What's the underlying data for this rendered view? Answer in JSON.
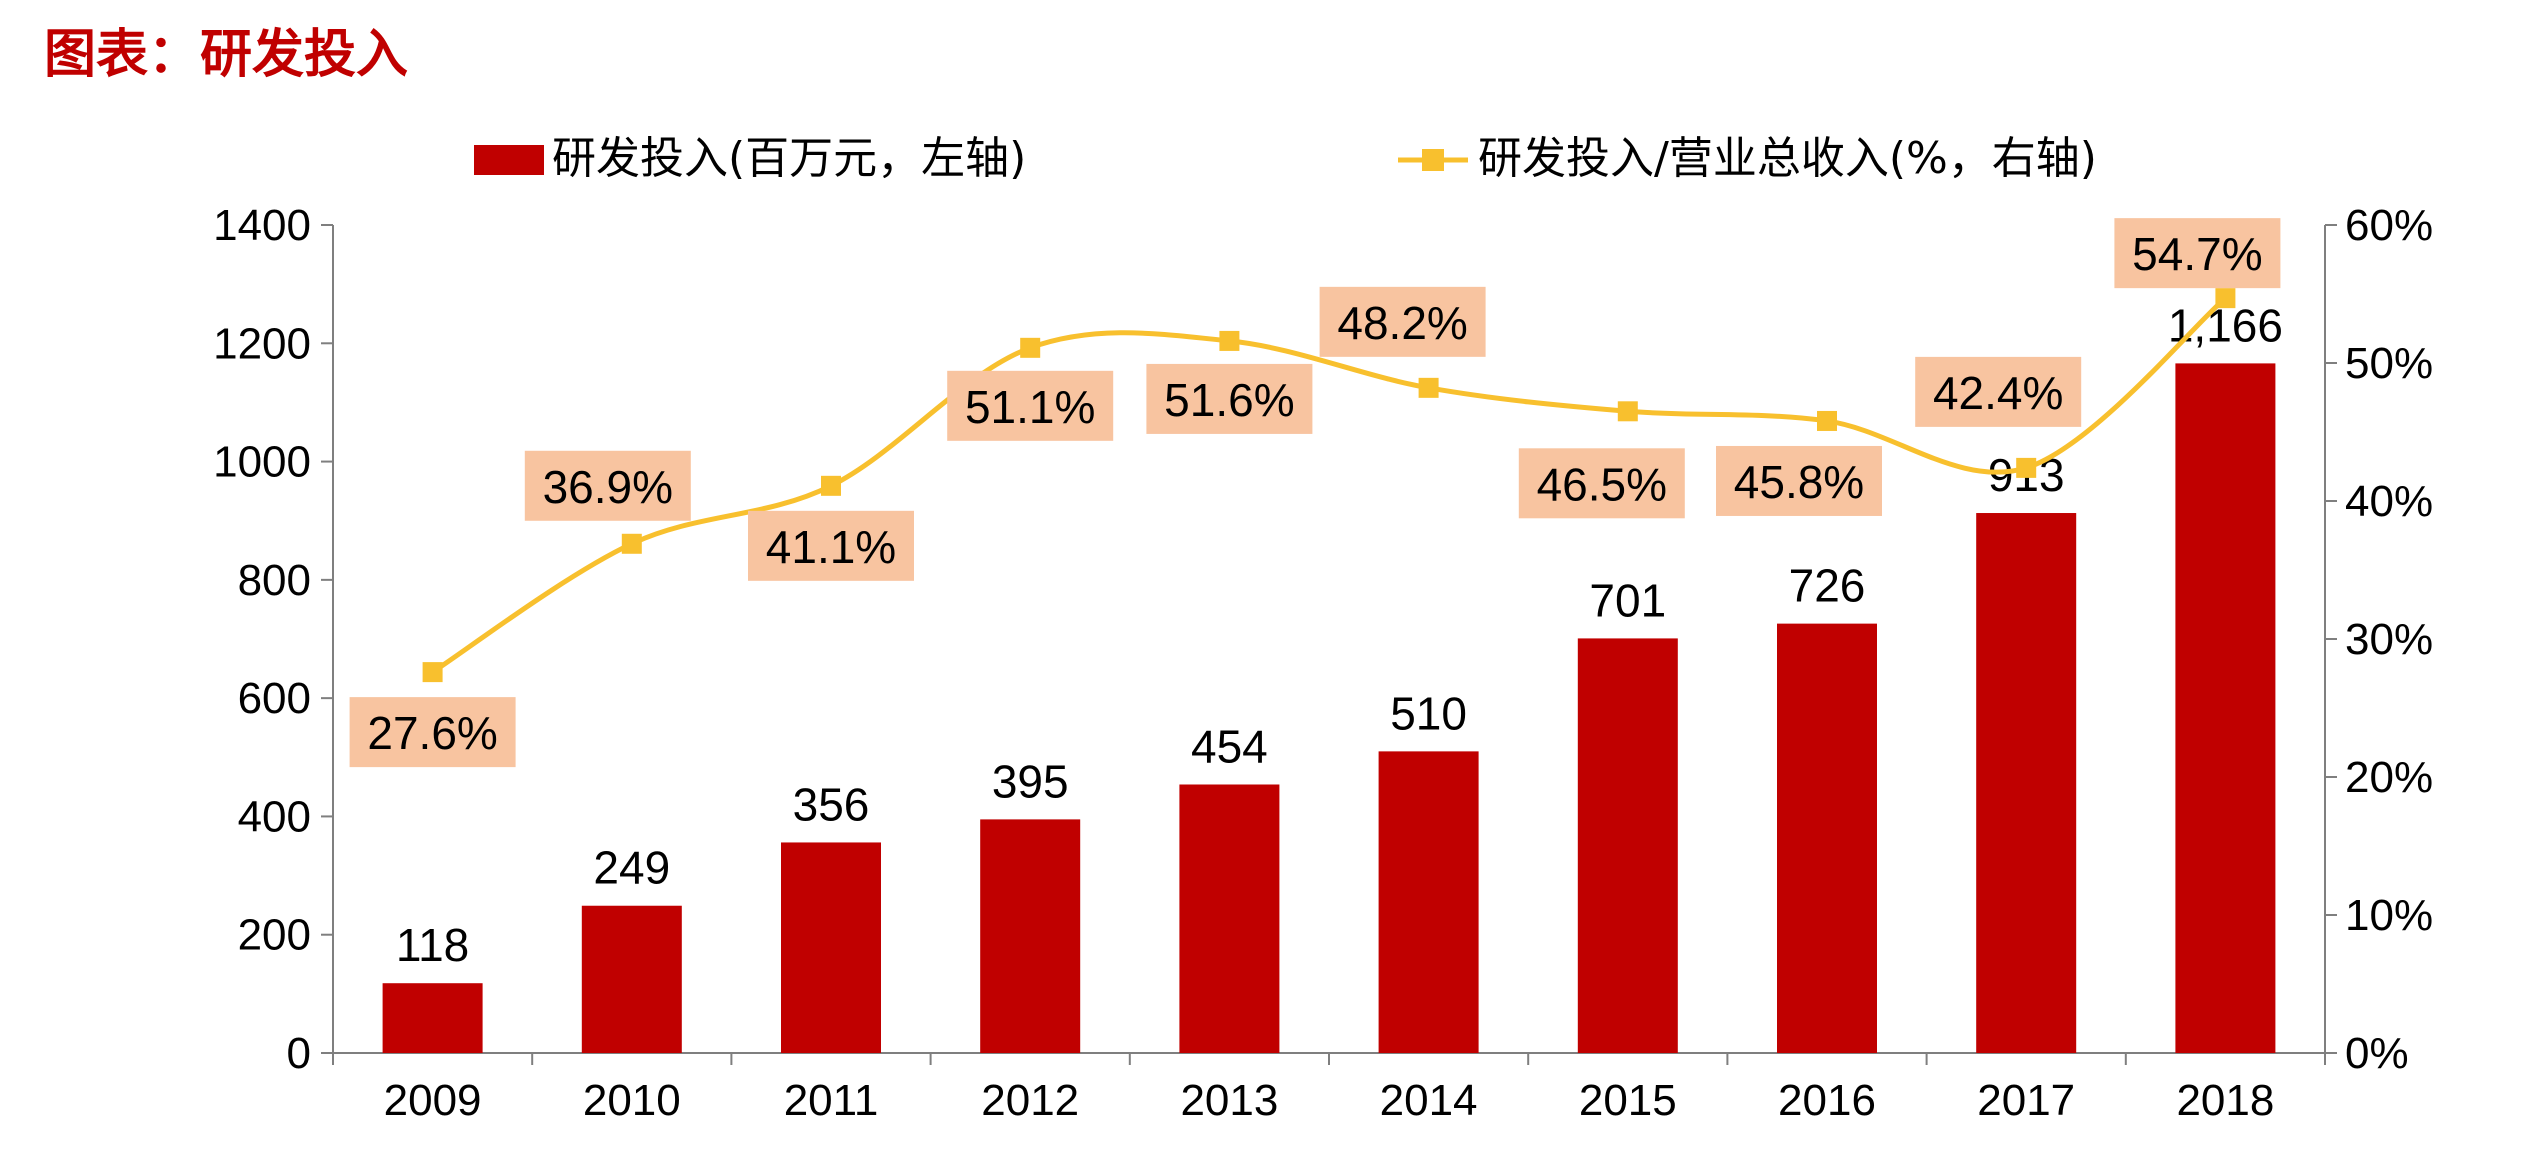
{
  "title": "图表：研发投入",
  "colors": {
    "bar": "#c00000",
    "line": "#f8c02e",
    "label_bg": "#f8c4a0",
    "title": "#c00000",
    "axis": "#7f7f7f"
  },
  "chart_data": {
    "type": "bar+line",
    "categories": [
      "2009",
      "2010",
      "2011",
      "2012",
      "2013",
      "2014",
      "2015",
      "2016",
      "2017",
      "2018"
    ],
    "series": [
      {
        "name": "研发投入(百万元，左轴)",
        "type": "bar",
        "axis": "left",
        "values": [
          118,
          249,
          356,
          395,
          454,
          510,
          701,
          726,
          913,
          1166
        ],
        "labels": [
          "118",
          "249",
          "356",
          "395",
          "454",
          "510",
          "701",
          "726",
          "913",
          "1,166"
        ]
      },
      {
        "name": "研发投入/营业总收入(%，右轴)",
        "type": "line",
        "axis": "right",
        "values": [
          27.6,
          36.9,
          41.1,
          51.1,
          51.6,
          48.2,
          46.5,
          45.8,
          42.4,
          54.7
        ],
        "labels": [
          "27.6%",
          "36.9%",
          "41.1%",
          "51.1%",
          "51.6%",
          "48.2%",
          "46.5%",
          "45.8%",
          "42.4%",
          "54.7%"
        ]
      }
    ],
    "y_left": {
      "min": 0,
      "max": 1400,
      "ticks": [
        "0",
        "200",
        "400",
        "600",
        "800",
        "1000",
        "1200",
        "1400"
      ]
    },
    "y_right": {
      "min": 0,
      "max": 60,
      "ticks": [
        "0%",
        "10%",
        "20%",
        "30%",
        "40%",
        "50%",
        "60%"
      ]
    },
    "grid": false,
    "legend_position": "top"
  }
}
